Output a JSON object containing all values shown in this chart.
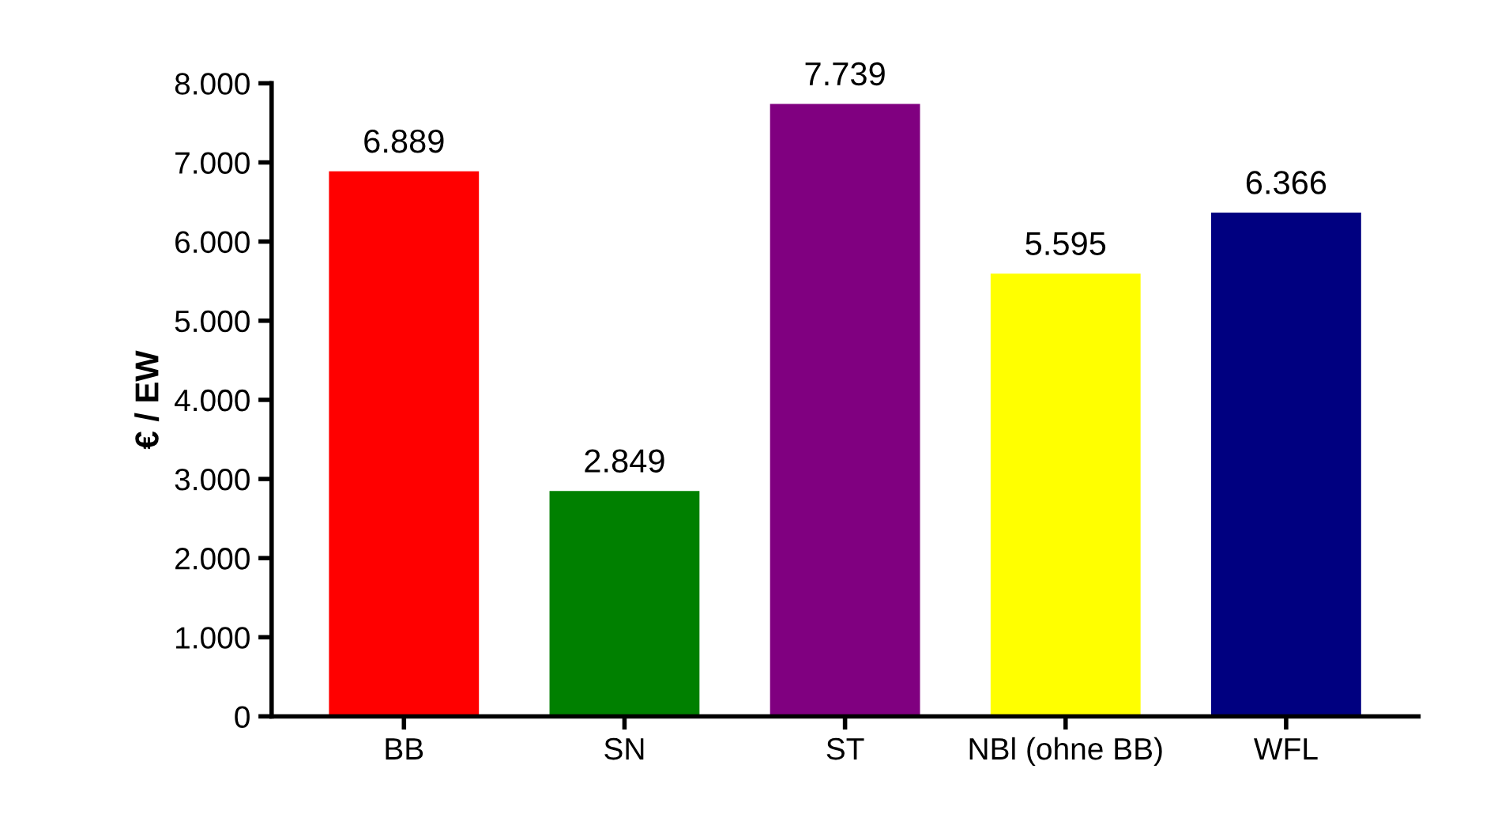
{
  "chart_data": {
    "type": "bar",
    "ylabel": "€ / EW",
    "categories": [
      "BB",
      "SN",
      "ST",
      "NBl (ohne BB)",
      "WFL"
    ],
    "values": [
      6889,
      2849,
      7739,
      5595,
      6366
    ],
    "colors": [
      "#ff0000",
      "#008000",
      "#800080",
      "#ffff00",
      "#000080"
    ],
    "value_labels": [
      "6.889",
      "2.849",
      "7.739",
      "5.595",
      "6.366"
    ],
    "ylim": [
      0,
      8000
    ],
    "yticks": [
      0,
      {
        "value": 1000,
        "label": "1.000"
      },
      {
        "value": 2000,
        "label": "2.000"
      },
      {
        "value": 3000,
        "label": "3.000"
      },
      {
        "value": 4000,
        "label": "4.000"
      },
      {
        "value": 5000,
        "label": "5.000"
      },
      {
        "value": 6000,
        "label": "6.000"
      },
      {
        "value": 7000,
        "label": "7.000"
      },
      {
        "value": 8000,
        "label": "8.000"
      }
    ],
    "grid": false
  }
}
